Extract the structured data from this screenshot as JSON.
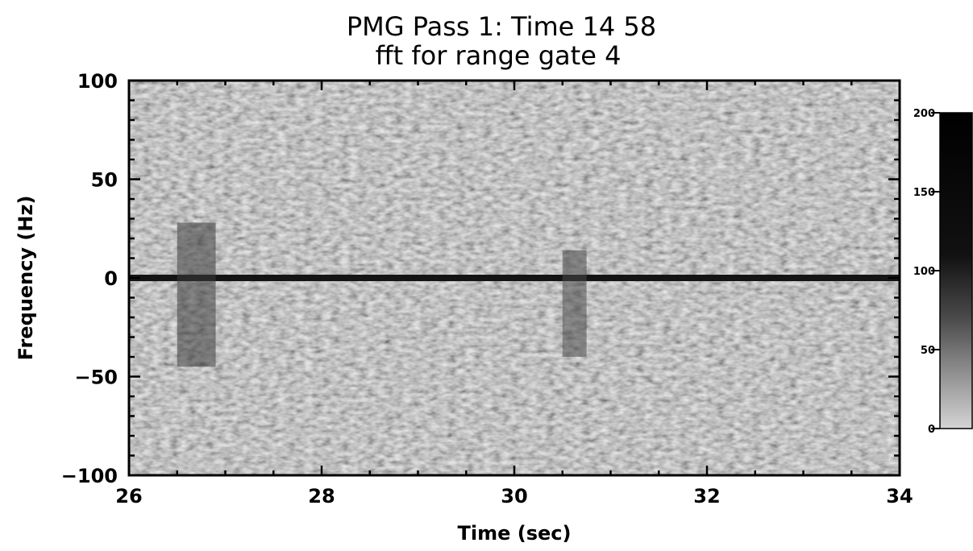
{
  "chart_data": {
    "type": "heatmap",
    "title": "PMG Pass 1:  Time 14 58",
    "subtitle": "fft for range gate  4",
    "xlabel": "Time (sec)",
    "ylabel": "Frequency (Hz)",
    "xlim": [
      26,
      34
    ],
    "ylim": [
      -100,
      100
    ],
    "x_ticks": [
      "26",
      "28",
      "30",
      "32",
      "34"
    ],
    "x_tick_values": [
      26,
      28,
      30,
      32,
      34
    ],
    "y_ticks": [
      "100",
      "50",
      "0",
      "−50",
      "−100"
    ],
    "y_tick_values": [
      100,
      50,
      0,
      -50,
      -100
    ],
    "colorbar": {
      "range": [
        0,
        200
      ],
      "ticks": [
        "200",
        "150",
        "100",
        "50",
        "0"
      ],
      "tick_values": [
        200,
        150,
        100,
        50,
        0
      ],
      "colormap": "grayscale (light = low, dark = high)"
    },
    "features": [
      {
        "x": [
          26.0,
          34.0
        ],
        "y": 0,
        "level": 190
      },
      {
        "x": [
          26.5,
          26.9
        ],
        "y": [
          -45,
          28
        ],
        "level": 150
      },
      {
        "x": [
          30.5,
          30.75
        ],
        "y": [
          -40,
          14
        ],
        "level": 135
      }
    ],
    "grid": false,
    "legend": "none"
  }
}
